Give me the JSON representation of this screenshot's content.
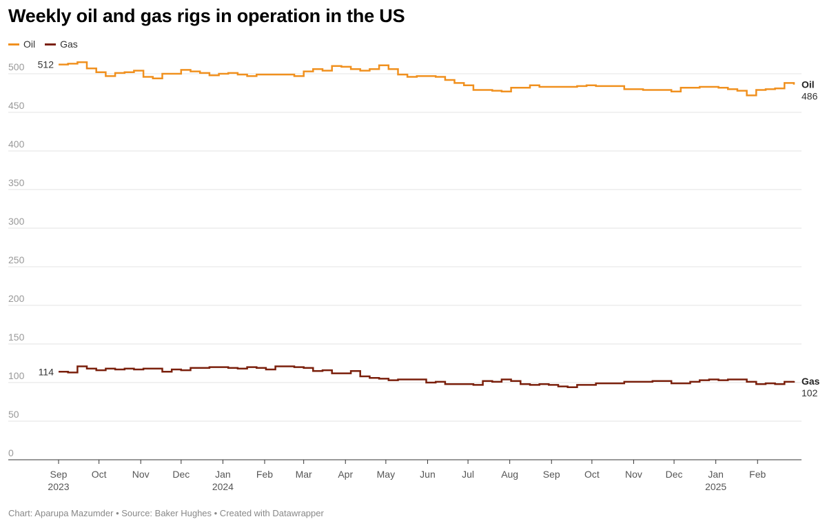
{
  "title": "Weekly oil and gas rigs in operation in the US",
  "footer": "Chart: Aparupa Mazumder • Source: Baker Hughes • Created with Datawrapper",
  "colors": {
    "oil": "#f0901e",
    "gas": "#7a1f0b",
    "grid": "#e3e3e3",
    "tick": "#999999",
    "axis": "#333333"
  },
  "chart_data": {
    "type": "line",
    "title": "Weekly oil and gas rigs in operation in the US",
    "ylim": [
      0,
      520
    ],
    "yticks": [
      0,
      50,
      100,
      150,
      200,
      250,
      300,
      350,
      400,
      450,
      500
    ],
    "grid": true,
    "legend_position": "top-left",
    "x_start": "2023-09-01",
    "x_end": "2025-02-28",
    "x_ticks": [
      {
        "date": "2023-09-01",
        "label": "Sep",
        "year": "2023"
      },
      {
        "date": "2023-10-01",
        "label": "Oct",
        "year": ""
      },
      {
        "date": "2023-11-01",
        "label": "Nov",
        "year": ""
      },
      {
        "date": "2023-12-01",
        "label": "Dec",
        "year": ""
      },
      {
        "date": "2024-01-01",
        "label": "Jan",
        "year": "2024"
      },
      {
        "date": "2024-02-01",
        "label": "Feb",
        "year": ""
      },
      {
        "date": "2024-03-01",
        "label": "Mar",
        "year": ""
      },
      {
        "date": "2024-04-01",
        "label": "Apr",
        "year": ""
      },
      {
        "date": "2024-05-01",
        "label": "May",
        "year": ""
      },
      {
        "date": "2024-06-01",
        "label": "Jun",
        "year": ""
      },
      {
        "date": "2024-07-01",
        "label": "Jul",
        "year": ""
      },
      {
        "date": "2024-08-01",
        "label": "Aug",
        "year": ""
      },
      {
        "date": "2024-09-01",
        "label": "Sep",
        "year": ""
      },
      {
        "date": "2024-10-01",
        "label": "Oct",
        "year": ""
      },
      {
        "date": "2024-11-01",
        "label": "Nov",
        "year": ""
      },
      {
        "date": "2024-12-01",
        "label": "Dec",
        "year": ""
      },
      {
        "date": "2025-01-01",
        "label": "Jan",
        "year": "2025"
      },
      {
        "date": "2025-02-01",
        "label": "Feb",
        "year": ""
      }
    ],
    "series": [
      {
        "name": "Oil",
        "color": "#f0901e",
        "start_label": "512",
        "end_label": "486",
        "points": [
          [
            "2023-09-01",
            512
          ],
          [
            "2023-09-08",
            513
          ],
          [
            "2023-09-15",
            515
          ],
          [
            "2023-09-22",
            507
          ],
          [
            "2023-09-29",
            502
          ],
          [
            "2023-10-06",
            497
          ],
          [
            "2023-10-13",
            501
          ],
          [
            "2023-10-20",
            502
          ],
          [
            "2023-10-27",
            504
          ],
          [
            "2023-11-03",
            496
          ],
          [
            "2023-11-10",
            494
          ],
          [
            "2023-11-17",
            500
          ],
          [
            "2023-11-24",
            500
          ],
          [
            "2023-12-01",
            505
          ],
          [
            "2023-12-08",
            503
          ],
          [
            "2023-12-15",
            501
          ],
          [
            "2023-12-22",
            498
          ],
          [
            "2023-12-29",
            500
          ],
          [
            "2024-01-05",
            501
          ],
          [
            "2024-01-12",
            499
          ],
          [
            "2024-01-19",
            497
          ],
          [
            "2024-01-26",
            499
          ],
          [
            "2024-02-02",
            499
          ],
          [
            "2024-02-09",
            499
          ],
          [
            "2024-02-16",
            499
          ],
          [
            "2024-02-23",
            497
          ],
          [
            "2024-03-01",
            503
          ],
          [
            "2024-03-08",
            506
          ],
          [
            "2024-03-15",
            504
          ],
          [
            "2024-03-22",
            510
          ],
          [
            "2024-03-29",
            509
          ],
          [
            "2024-04-05",
            506
          ],
          [
            "2024-04-12",
            504
          ],
          [
            "2024-04-19",
            506
          ],
          [
            "2024-04-26",
            511
          ],
          [
            "2024-05-03",
            506
          ],
          [
            "2024-05-10",
            499
          ],
          [
            "2024-05-17",
            496
          ],
          [
            "2024-05-24",
            497
          ],
          [
            "2024-05-31",
            497
          ],
          [
            "2024-06-07",
            496
          ],
          [
            "2024-06-14",
            492
          ],
          [
            "2024-06-21",
            488
          ],
          [
            "2024-06-28",
            485
          ],
          [
            "2024-07-05",
            479
          ],
          [
            "2024-07-12",
            479
          ],
          [
            "2024-07-19",
            478
          ],
          [
            "2024-07-26",
            477
          ],
          [
            "2024-08-02",
            482
          ],
          [
            "2024-08-09",
            482
          ],
          [
            "2024-08-16",
            485
          ],
          [
            "2024-08-23",
            483
          ],
          [
            "2024-08-30",
            483
          ],
          [
            "2024-09-06",
            483
          ],
          [
            "2024-09-13",
            483
          ],
          [
            "2024-09-20",
            484
          ],
          [
            "2024-09-27",
            485
          ],
          [
            "2024-10-04",
            484
          ],
          [
            "2024-10-11",
            484
          ],
          [
            "2024-10-18",
            484
          ],
          [
            "2024-10-25",
            480
          ],
          [
            "2024-11-01",
            480
          ],
          [
            "2024-11-08",
            479
          ],
          [
            "2024-11-15",
            479
          ],
          [
            "2024-11-22",
            479
          ],
          [
            "2024-11-29",
            477
          ],
          [
            "2024-12-06",
            482
          ],
          [
            "2024-12-13",
            482
          ],
          [
            "2024-12-20",
            483
          ],
          [
            "2024-12-27",
            483
          ],
          [
            "2025-01-03",
            482
          ],
          [
            "2025-01-10",
            480
          ],
          [
            "2025-01-17",
            478
          ],
          [
            "2025-01-24",
            472
          ],
          [
            "2025-01-31",
            479
          ],
          [
            "2025-02-07",
            480
          ],
          [
            "2025-02-14",
            481
          ],
          [
            "2025-02-21",
            488
          ],
          [
            "2025-02-28",
            486
          ]
        ]
      },
      {
        "name": "Gas",
        "color": "#7a1f0b",
        "start_label": "114",
        "end_label": "102",
        "points": [
          [
            "2023-09-01",
            114
          ],
          [
            "2023-09-08",
            113
          ],
          [
            "2023-09-15",
            121
          ],
          [
            "2023-09-22",
            118
          ],
          [
            "2023-09-29",
            116
          ],
          [
            "2023-10-06",
            118
          ],
          [
            "2023-10-13",
            117
          ],
          [
            "2023-10-20",
            118
          ],
          [
            "2023-10-27",
            117
          ],
          [
            "2023-11-03",
            118
          ],
          [
            "2023-11-10",
            118
          ],
          [
            "2023-11-17",
            114
          ],
          [
            "2023-11-24",
            117
          ],
          [
            "2023-12-01",
            116
          ],
          [
            "2023-12-08",
            119
          ],
          [
            "2023-12-15",
            119
          ],
          [
            "2023-12-22",
            120
          ],
          [
            "2023-12-29",
            120
          ],
          [
            "2024-01-05",
            119
          ],
          [
            "2024-01-12",
            118
          ],
          [
            "2024-01-19",
            120
          ],
          [
            "2024-01-26",
            119
          ],
          [
            "2024-02-02",
            117
          ],
          [
            "2024-02-09",
            121
          ],
          [
            "2024-02-16",
            121
          ],
          [
            "2024-02-23",
            120
          ],
          [
            "2024-03-01",
            119
          ],
          [
            "2024-03-08",
            115
          ],
          [
            "2024-03-15",
            116
          ],
          [
            "2024-03-22",
            112
          ],
          [
            "2024-03-29",
            112
          ],
          [
            "2024-04-05",
            115
          ],
          [
            "2024-04-12",
            108
          ],
          [
            "2024-04-19",
            106
          ],
          [
            "2024-04-26",
            105
          ],
          [
            "2024-05-03",
            103
          ],
          [
            "2024-05-10",
            104
          ],
          [
            "2024-05-17",
            104
          ],
          [
            "2024-05-24",
            104
          ],
          [
            "2024-05-31",
            100
          ],
          [
            "2024-06-07",
            101
          ],
          [
            "2024-06-14",
            98
          ],
          [
            "2024-06-21",
            98
          ],
          [
            "2024-06-28",
            98
          ],
          [
            "2024-07-05",
            97
          ],
          [
            "2024-07-12",
            102
          ],
          [
            "2024-07-19",
            101
          ],
          [
            "2024-07-26",
            104
          ],
          [
            "2024-08-02",
            102
          ],
          [
            "2024-08-09",
            98
          ],
          [
            "2024-08-16",
            97
          ],
          [
            "2024-08-23",
            98
          ],
          [
            "2024-08-30",
            97
          ],
          [
            "2024-09-06",
            95
          ],
          [
            "2024-09-13",
            94
          ],
          [
            "2024-09-20",
            97
          ],
          [
            "2024-09-27",
            97
          ],
          [
            "2024-10-04",
            99
          ],
          [
            "2024-10-11",
            99
          ],
          [
            "2024-10-18",
            99
          ],
          [
            "2024-10-25",
            101
          ],
          [
            "2024-11-01",
            101
          ],
          [
            "2024-11-08",
            101
          ],
          [
            "2024-11-15",
            102
          ],
          [
            "2024-11-22",
            102
          ],
          [
            "2024-11-29",
            99
          ],
          [
            "2024-12-06",
            99
          ],
          [
            "2024-12-13",
            101
          ],
          [
            "2024-12-20",
            103
          ],
          [
            "2024-12-27",
            104
          ],
          [
            "2025-01-03",
            103
          ],
          [
            "2025-01-10",
            104
          ],
          [
            "2025-01-17",
            104
          ],
          [
            "2025-01-24",
            101
          ],
          [
            "2025-01-31",
            98
          ],
          [
            "2025-02-07",
            99
          ],
          [
            "2025-02-14",
            98
          ],
          [
            "2025-02-21",
            101
          ],
          [
            "2025-02-28",
            102
          ]
        ]
      }
    ]
  }
}
